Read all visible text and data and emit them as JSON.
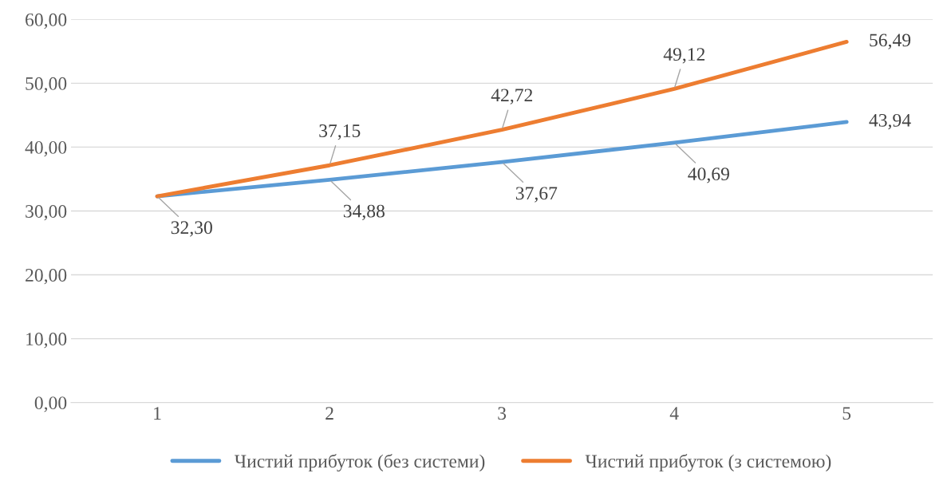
{
  "chart_data": {
    "type": "line",
    "categories": [
      "1",
      "2",
      "3",
      "4",
      "5"
    ],
    "series": [
      {
        "name": "Чистий прибуток (без системи)",
        "color": "#5b9bd5",
        "values": [
          32.3,
          34.88,
          37.67,
          40.69,
          43.94
        ],
        "value_labels": [
          "32,30",
          "34,88",
          "37,67",
          "40,69",
          "43,94"
        ]
      },
      {
        "name": "Чистий прибуток (з системою)",
        "color": "#ed7d31",
        "values": [
          32.3,
          37.15,
          42.72,
          49.12,
          56.49
        ],
        "value_labels": [
          null,
          "37,15",
          "42,72",
          "49,12",
          "56,49"
        ]
      }
    ],
    "ylim": [
      0,
      60
    ],
    "yticks": [
      {
        "value": 0,
        "label": "0,00"
      },
      {
        "value": 10,
        "label": "10,00"
      },
      {
        "value": 20,
        "label": "20,00"
      },
      {
        "value": 30,
        "label": "30,00"
      },
      {
        "value": 40,
        "label": "40,00"
      },
      {
        "value": 50,
        "label": "50,00"
      },
      {
        "value": 60,
        "label": "60,00"
      }
    ],
    "grid": "y",
    "legend": "bottom",
    "marker": "none",
    "line_style": "solid"
  }
}
